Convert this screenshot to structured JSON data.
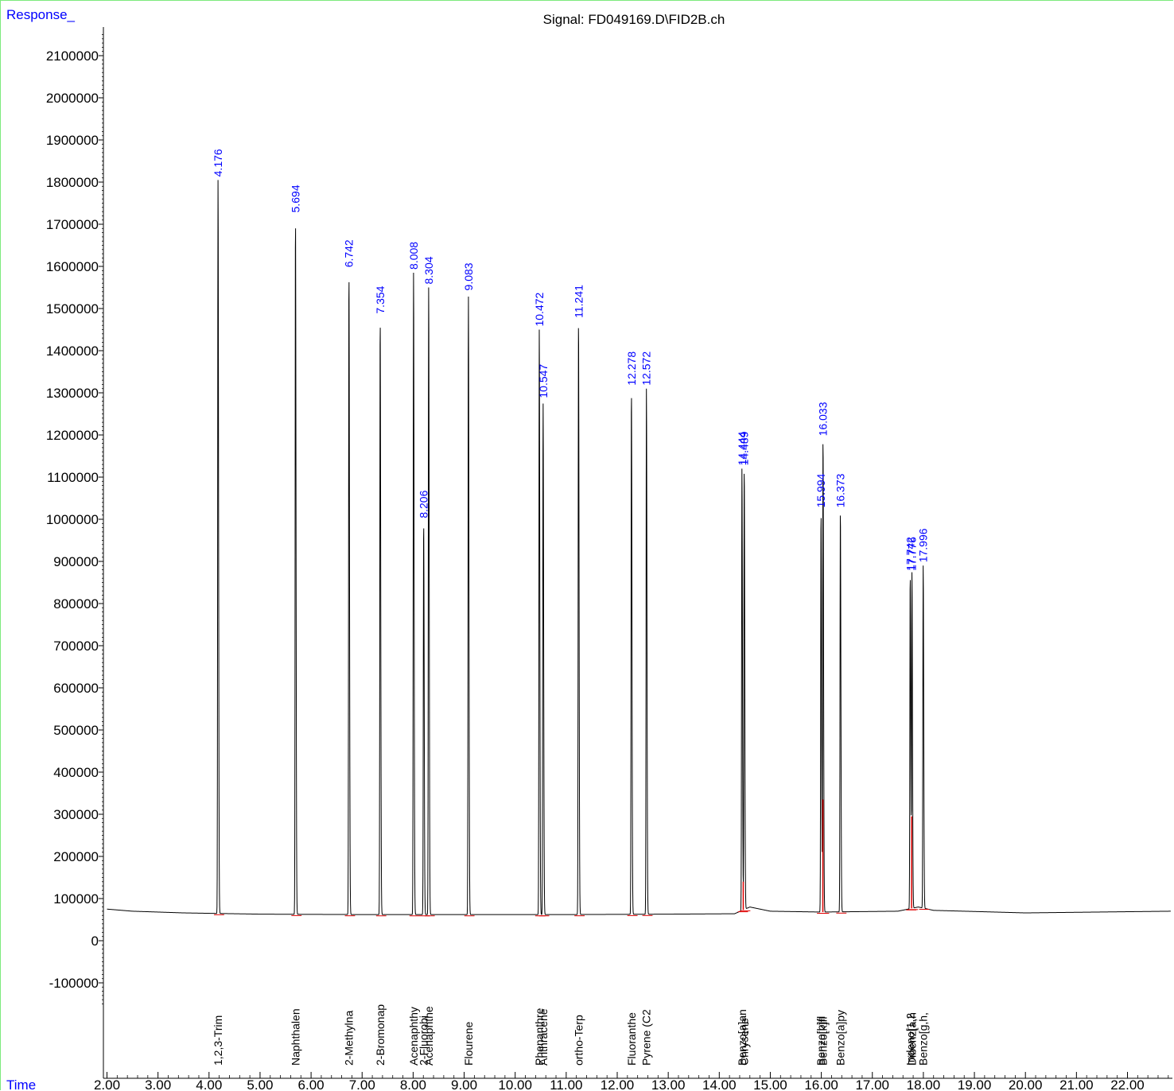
{
  "chart_data": {
    "type": "line",
    "title": "Signal: FD049169.D\\FID2B.ch",
    "ylabel": "Response_",
    "xlabel": "Time",
    "xlim": [
      2.0,
      22.85
    ],
    "ylim": [
      -160000,
      2180000
    ],
    "x_ticks": [
      "2.00",
      "3.00",
      "4.00",
      "5.00",
      "6.00",
      "7.00",
      "8.00",
      "9.00",
      "10.00",
      "11.00",
      "12.00",
      "13.00",
      "14.00",
      "15.00",
      "16.00",
      "17.00",
      "18.00",
      "19.00",
      "20.00",
      "21.00",
      "22.00"
    ],
    "y_ticks": [
      "-100000",
      "0",
      "100000",
      "200000",
      "300000",
      "400000",
      "500000",
      "600000",
      "700000",
      "800000",
      "900000",
      "1000000",
      "1100000",
      "1200000",
      "1300000",
      "1400000",
      "1500000",
      "1600000",
      "1700000",
      "1800000",
      "1900000",
      "2000000",
      "2100000"
    ],
    "grid": false,
    "baseline": [
      [
        2.0,
        75000
      ],
      [
        2.5,
        70000
      ],
      [
        3.5,
        66000
      ],
      [
        5.0,
        63000
      ],
      [
        7.0,
        62000
      ],
      [
        9.0,
        62000
      ],
      [
        11.0,
        62000
      ],
      [
        13.0,
        63000
      ],
      [
        14.3,
        64000
      ],
      [
        14.6,
        80000
      ],
      [
        15.0,
        70000
      ],
      [
        16.0,
        68000
      ],
      [
        17.5,
        70000
      ],
      [
        17.9,
        80000
      ],
      [
        18.2,
        72000
      ],
      [
        20.0,
        66000
      ],
      [
        22.85,
        70000
      ]
    ],
    "peaks": [
      {
        "rt": "4.176",
        "x": 4.176,
        "height": 1805000,
        "compound": "1,2,3-Trim"
      },
      {
        "rt": "5.694",
        "x": 5.694,
        "height": 1720000,
        "compound": "Naphthalen"
      },
      {
        "rt": "6.742",
        "x": 6.742,
        "height": 1590000,
        "compound": "2-Methylna"
      },
      {
        "rt": "7.354",
        "x": 7.354,
        "height": 1480000,
        "compound": "2-Bromonap"
      },
      {
        "rt": "8.008",
        "x": 8.008,
        "height": 1585000,
        "compound": "Acenaphthy"
      },
      {
        "rt": "8.206",
        "x": 8.206,
        "height": 995000,
        "compound": "2-Fluorobi"
      },
      {
        "rt": "8.304",
        "x": 8.304,
        "height": 1550000,
        "compound": "Acenaphthe"
      },
      {
        "rt": "9.083",
        "x": 9.083,
        "height": 1535000,
        "compound": "Flourene"
      },
      {
        "rt": "10.472",
        "x": 10.472,
        "height": 1450000,
        "compound": "Phenanthre"
      },
      {
        "rt": "10.547",
        "x": 10.547,
        "height": 1280000,
        "compound": "Anthracene"
      },
      {
        "rt": "11.241",
        "x": 11.241,
        "height": 1470000,
        "compound": "ortho-Terp"
      },
      {
        "rt": "12.278",
        "x": 12.278,
        "height": 1310000,
        "compound": "Fluoranthe"
      },
      {
        "rt": "12.572",
        "x": 12.572,
        "height": 1310000,
        "compound": "Pyrene (C2"
      },
      {
        "rt": "14.444",
        "x": 14.444,
        "height": 1120000,
        "compound": "Benzo[a]an"
      },
      {
        "rt": "14.489",
        "x": 14.489,
        "height": 1120000,
        "compound": "Chrysene"
      },
      {
        "rt": "15.994",
        "x": 15.994,
        "height": 1020000,
        "compound": "Benzo[b]fl"
      },
      {
        "rt": "16.033",
        "x": 16.033,
        "height": 1190000,
        "compound": "Benzo[k]fl"
      },
      {
        "rt": "16.373",
        "x": 16.373,
        "height": 1020000,
        "compound": "Benzo[a]py"
      },
      {
        "rt": "17.742",
        "x": 17.742,
        "height": 870000,
        "compound": "Indeno[1,2"
      },
      {
        "rt": "17.776",
        "x": 17.776,
        "height": 870000,
        "compound": "Dibenz[a,h"
      },
      {
        "rt": "17.996",
        "x": 17.996,
        "height": 890000,
        "compound": "Benzo[g,h,"
      }
    ],
    "integration_marks": [
      {
        "x": 14.47,
        "height": 140000
      },
      {
        "x": 16.03,
        "height": 335000
      },
      {
        "x": 17.77,
        "height": 295000
      }
    ],
    "colors": {
      "trace": "#000000",
      "integration": "#e00000",
      "rt_label": "#0000ff",
      "axis_label": "#0000ff",
      "axes": "#000000",
      "frame": "#7dea7d"
    }
  }
}
